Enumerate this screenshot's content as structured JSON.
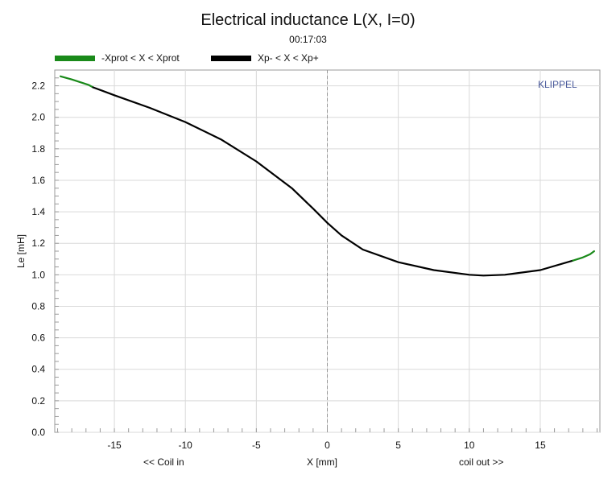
{
  "brand": "KLIPPEL",
  "chart_data": {
    "type": "line",
    "title": "Electrical inductance L(X, I=0)",
    "subtitle": "00:17:03",
    "ylabel": "Le [mH]",
    "xlabel": "X [mm]",
    "x_left_label": "<< Coil in",
    "x_right_label": "coil out >>",
    "xlim": [
      -19.2,
      19.2
    ],
    "ylim": [
      0.0,
      2.3
    ],
    "x_ticks": [
      -15,
      -10,
      -5,
      0,
      5,
      10,
      15
    ],
    "y_ticks": [
      0.0,
      0.2,
      0.4,
      0.6,
      0.8,
      1.0,
      1.2,
      1.4,
      1.6,
      1.8,
      2.0,
      2.2
    ],
    "grid": true,
    "legend_position": "top-left",
    "series": [
      {
        "name": "-Xprot < X < Xprot",
        "color": "#1a8a1a",
        "x": [
          -18.8,
          -18.0,
          -17.3,
          -16.8,
          -16.5
        ],
        "y": [
          2.26,
          2.24,
          2.22,
          2.205,
          2.19
        ]
      },
      {
        "name": "Xp- < X < Xp+",
        "color": "#000000",
        "x": [
          -16.5,
          -15,
          -12.5,
          -10,
          -7.5,
          -5,
          -2.5,
          -1,
          0,
          1,
          2.5,
          5,
          7.5,
          10,
          11,
          12.5,
          15,
          17.3
        ],
        "y": [
          2.19,
          2.14,
          2.06,
          1.97,
          1.86,
          1.72,
          1.55,
          1.42,
          1.33,
          1.25,
          1.16,
          1.08,
          1.03,
          1.0,
          0.995,
          1.0,
          1.03,
          1.09
        ]
      },
      {
        "name": "-Xprot < X < Xprot",
        "color": "#1a8a1a",
        "x": [
          17.3,
          18.0,
          18.5,
          18.8
        ],
        "y": [
          1.09,
          1.11,
          1.13,
          1.15
        ]
      }
    ],
    "vline_x": 0
  }
}
